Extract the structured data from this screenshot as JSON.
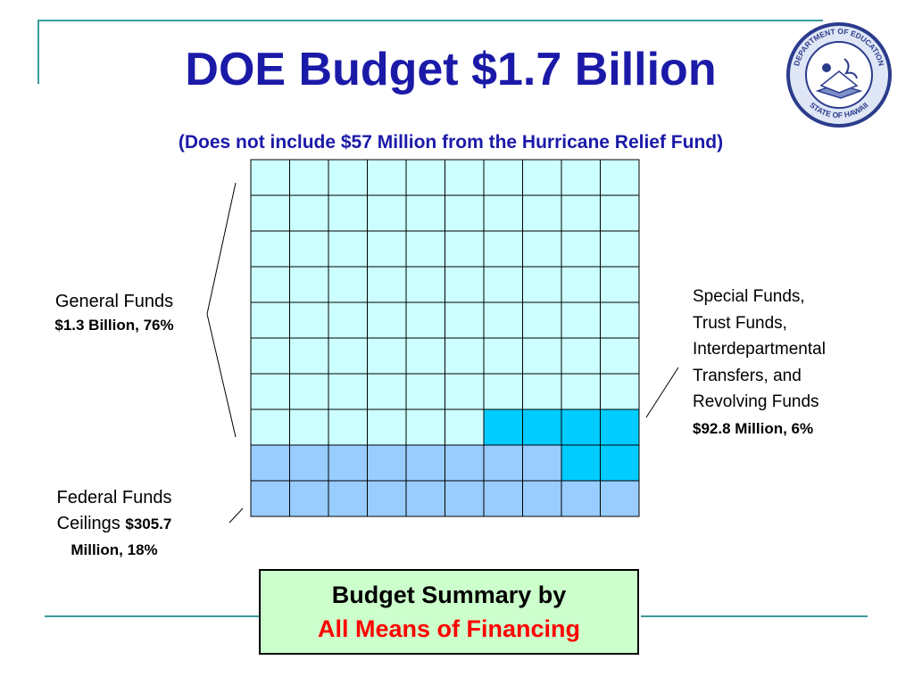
{
  "title": "DOE Budget $1.7 Billion",
  "subtitle": "(Does not include $57 Million from the Hurricane Relief Fund)",
  "seal": {
    "icon": "department-of-education-seal-icon",
    "text_top": "DEPARTMENT OF EDUCATION",
    "text_bottom": "STATE OF HAWAII"
  },
  "colors": {
    "general": "#ccffff",
    "special": "#00ccff",
    "federal": "#99ccff",
    "title": "#1b1aa8",
    "accent_line": "#3a9a9a",
    "summary_bg": "#ccffcc",
    "summary_red": "#ff0000"
  },
  "chart_data": {
    "type": "waffle",
    "grid": {
      "rows": 10,
      "cols": 10
    },
    "title": "DOE Budget $1.7 Billion",
    "subtitle": "(Does not include $57 Million from the Hurricane Relief Fund)",
    "series": [
      {
        "name": "General Funds",
        "amount": "$1.3 Billion",
        "percent": 76,
        "color": "#ccffff"
      },
      {
        "name": "Special Funds, Trust Funds, Interdepartmental Transfers, and Revolving Funds",
        "amount": "$92.8 Million",
        "percent": 6,
        "color": "#00ccff"
      },
      {
        "name": "Federal Funds Ceilings",
        "amount": "$305.7 Million",
        "percent": 18,
        "color": "#99ccff"
      }
    ],
    "cell_categories": [
      "G",
      "G",
      "G",
      "G",
      "G",
      "G",
      "G",
      "G",
      "G",
      "G",
      "G",
      "G",
      "G",
      "G",
      "G",
      "G",
      "G",
      "G",
      "G",
      "G",
      "G",
      "G",
      "G",
      "G",
      "G",
      "G",
      "G",
      "G",
      "G",
      "G",
      "G",
      "G",
      "G",
      "G",
      "G",
      "G",
      "G",
      "G",
      "G",
      "G",
      "G",
      "G",
      "G",
      "G",
      "G",
      "G",
      "G",
      "G",
      "G",
      "G",
      "G",
      "G",
      "G",
      "G",
      "G",
      "G",
      "G",
      "G",
      "G",
      "G",
      "G",
      "G",
      "G",
      "G",
      "G",
      "G",
      "G",
      "G",
      "G",
      "G",
      "G",
      "G",
      "G",
      "G",
      "G",
      "G",
      "S",
      "S",
      "S",
      "S",
      "F",
      "F",
      "F",
      "F",
      "F",
      "F",
      "F",
      "F",
      "S",
      "S",
      "F",
      "F",
      "F",
      "F",
      "F",
      "F",
      "F",
      "F",
      "F",
      "F"
    ]
  },
  "labels": {
    "general_name": "General Funds",
    "general_value": "$1.3 Billion, 76%",
    "special_lines": [
      "Special Funds,",
      "Trust Funds,",
      "Interdepartmental",
      "Transfers, and",
      "Revolving Funds"
    ],
    "special_value": "$92.8 Million, 6%",
    "federal_line1": "Federal Funds",
    "federal_line2_prefix": "Ceilings",
    "federal_value_part1": "$305.7",
    "federal_value_part2": "Million, 18%"
  },
  "summary": {
    "line1": "Budget Summary by",
    "line2": "All Means of Financing"
  }
}
